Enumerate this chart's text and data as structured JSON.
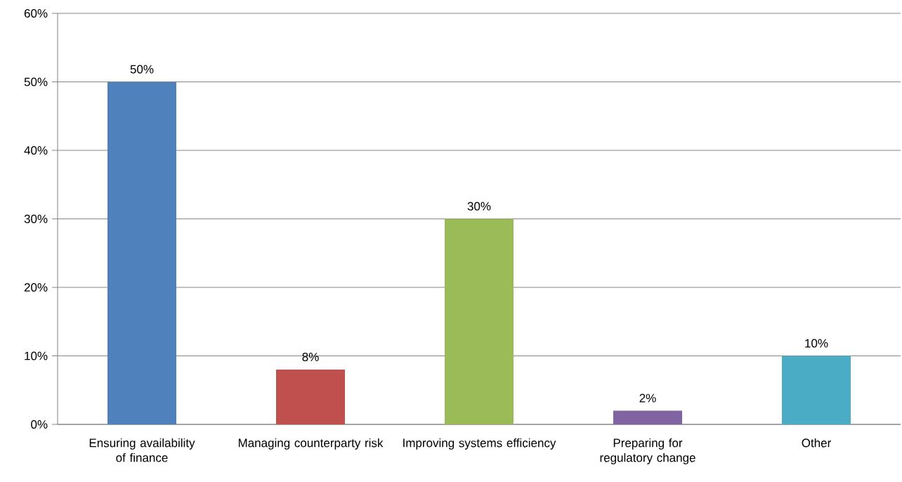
{
  "chart_data": {
    "type": "bar",
    "categories": [
      "Ensuring availability of finance",
      "Managing counterparty risk",
      "Improving systems efficiency",
      "Preparing for regulatory change",
      "Other"
    ],
    "values": [
      50,
      8,
      30,
      2,
      10
    ],
    "colors": [
      "#4f81bd",
      "#c0504d",
      "#9bbb59",
      "#8064a2",
      "#4bacc6"
    ],
    "value_labels": [
      "50%",
      "8%",
      "30%",
      "2%",
      "10%"
    ],
    "ylim": [
      0,
      60
    ],
    "yticks": [
      {
        "value": 0,
        "label": "0%"
      },
      {
        "value": 10,
        "label": "10%"
      },
      {
        "value": 20,
        "label": "20%"
      },
      {
        "value": 30,
        "label": "30%"
      },
      {
        "value": 40,
        "label": "40%"
      },
      {
        "value": 50,
        "label": "50%"
      },
      {
        "value": 60,
        "label": "60%"
      }
    ],
    "grid": "y"
  }
}
